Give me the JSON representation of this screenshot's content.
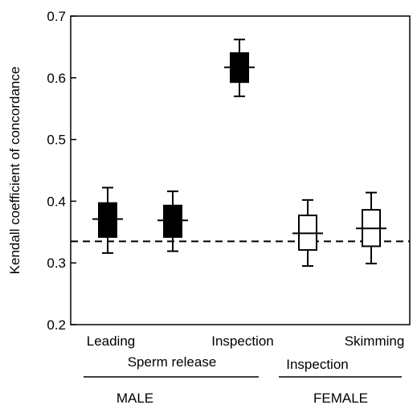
{
  "chart_data": {
    "type": "box",
    "ylabel": "Kendall coefficient of concordance",
    "ylim": [
      0.2,
      0.7
    ],
    "yticks": [
      0.2,
      0.3,
      0.4,
      0.5,
      0.6,
      0.7
    ],
    "ytick_labels": [
      "0.2",
      "0.3",
      "0.4",
      "0.5",
      "0.6",
      "0.7"
    ],
    "reference_line": {
      "y": 0.335,
      "style": "dashed"
    },
    "boxes": [
      {
        "x_label": "Leading",
        "fill": "black",
        "q1": 0.342,
        "median": 0.371,
        "q3": 0.397,
        "whisker_low": 0.316,
        "whisker_high": 0.422
      },
      {
        "x_label": "",
        "fill": "black",
        "q1": 0.342,
        "median": 0.369,
        "q3": 0.393,
        "whisker_low": 0.319,
        "whisker_high": 0.416
      },
      {
        "x_label": "Inspection",
        "fill": "black",
        "q1": 0.593,
        "median": 0.617,
        "q3": 0.64,
        "whisker_low": 0.57,
        "whisker_high": 0.662
      },
      {
        "x_label": "",
        "fill": "white",
        "q1": 0.321,
        "median": 0.348,
        "q3": 0.377,
        "whisker_low": 0.295,
        "whisker_high": 0.402
      },
      {
        "x_label": "Skimming",
        "fill": "white",
        "q1": 0.327,
        "median": 0.356,
        "q3": 0.386,
        "whisker_low": 0.299,
        "whisker_high": 0.414
      }
    ],
    "group_labels": [
      {
        "text": "Sperm release",
        "level": 1,
        "boxes": [
          0,
          1
        ]
      },
      {
        "text": "Inspection",
        "level": 1,
        "boxes": [
          3,
          4
        ]
      },
      {
        "text": "MALE",
        "level": 2,
        "boxes": [
          0,
          1,
          2
        ]
      },
      {
        "text": "FEMALE",
        "level": 2,
        "boxes": [
          3,
          4
        ]
      }
    ],
    "colors": {
      "filled": "#000000",
      "open": "#ffffff",
      "axis": "#000000"
    }
  }
}
